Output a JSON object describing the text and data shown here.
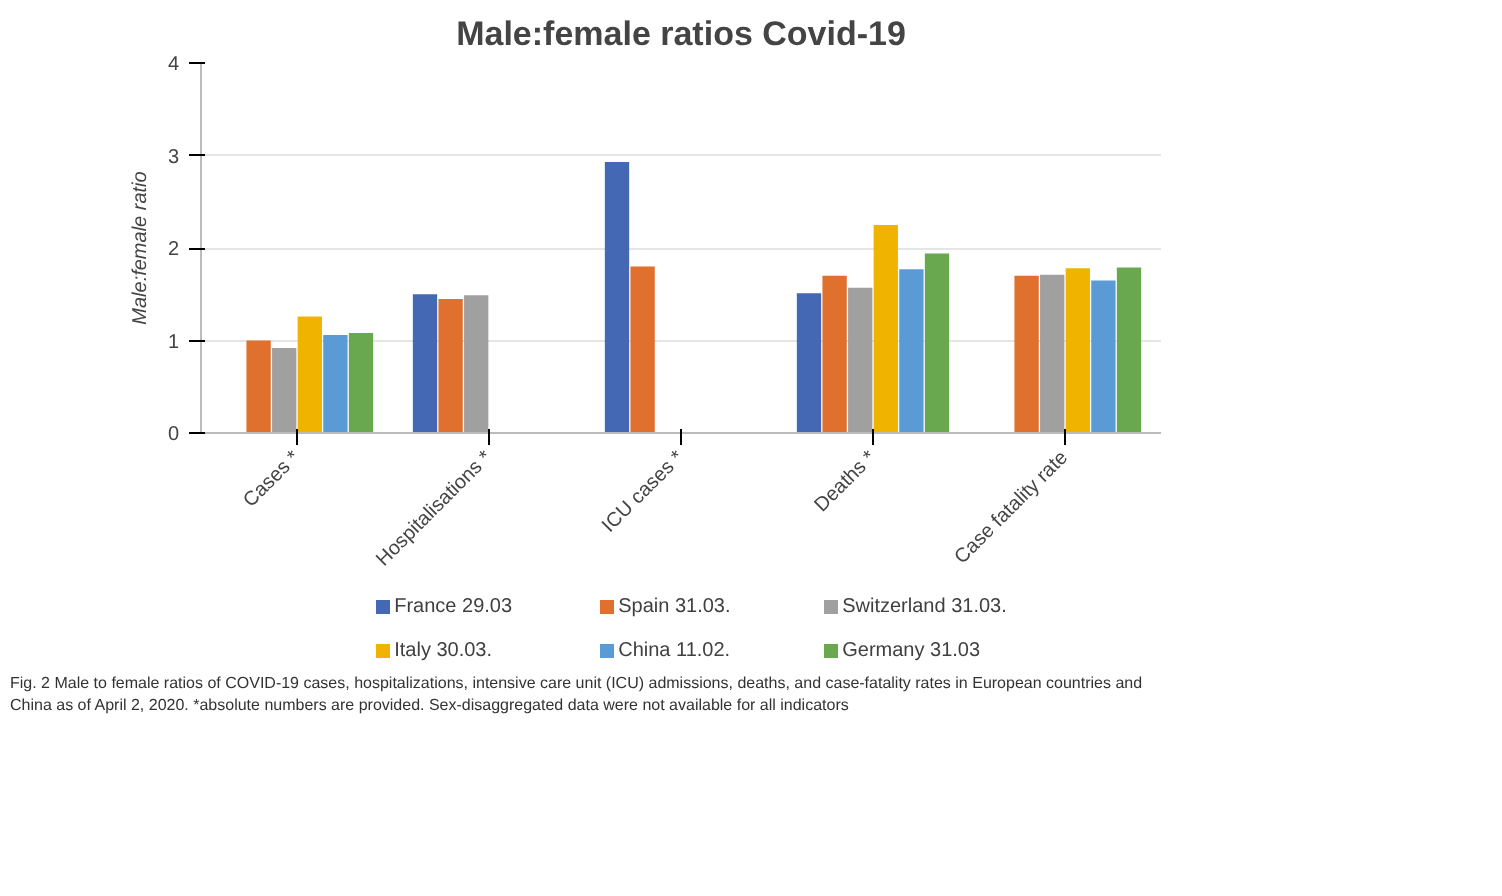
{
  "chart_data": {
    "type": "bar",
    "title": "Male:female ratios Covid-19",
    "ylabel": "Male:female ratio",
    "categories": [
      "Cases *",
      "Hospitalisations *",
      "ICU cases *",
      "Deaths *",
      "Case fatality rate"
    ],
    "series": [
      {
        "name": "France 29.03",
        "color": "#4468b4",
        "values": [
          null,
          1.5,
          2.93,
          1.51,
          null
        ]
      },
      {
        "name": "Spain 31.03.",
        "color": "#e0702e",
        "values": [
          1.0,
          1.45,
          1.8,
          1.7,
          1.7
        ]
      },
      {
        "name": "Switzerland 31.03.",
        "color": "#a0a0a0",
        "values": [
          0.92,
          1.49,
          null,
          1.57,
          1.71
        ]
      },
      {
        "name": "Italy 30.03.",
        "color": "#f0b400",
        "values": [
          1.26,
          null,
          null,
          2.25,
          1.78
        ]
      },
      {
        "name": "China 11.02.",
        "color": "#5b9bd5",
        "values": [
          1.06,
          null,
          null,
          1.77,
          1.65
        ]
      },
      {
        "name": "Germany 31.03",
        "color": "#6aa84f",
        "values": [
          1.08,
          null,
          null,
          1.94,
          1.79
        ]
      }
    ],
    "ylim": [
      0,
      4
    ],
    "yticks": [
      0,
      1,
      2,
      3,
      4
    ],
    "grid": "y",
    "legend": "bottom",
    "annotations": [
      "Fig. 2 Male to female ratios of COVID-19 cases, hospitalizations, intensive care unit (ICU) admissions, deaths, and case-fatality rates in European countries and China as of April 2, 2020. *absolute numbers are provided. Sex-disaggregated data were not available for all indicators"
    ]
  }
}
